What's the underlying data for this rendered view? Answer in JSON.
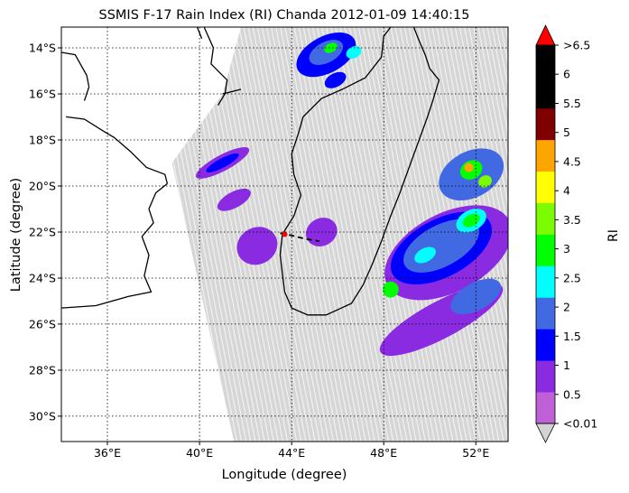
{
  "title": "SSMIS F-17 Rain Index (RI) Chanda 2012-01-09 14:40:15",
  "axes": {
    "xlabel": "Longitude (degree)",
    "ylabel": "Latitude (degree)",
    "xlim": [
      34,
      53.4
    ],
    "ylim": [
      -31.1,
      -13.1
    ],
    "x_ticks": [
      {
        "value": 36,
        "label": "36°E"
      },
      {
        "value": 40,
        "label": "40°E"
      },
      {
        "value": 44,
        "label": "44°E"
      },
      {
        "value": 48,
        "label": "48°E"
      },
      {
        "value": 52,
        "label": "52°E"
      }
    ],
    "y_ticks": [
      {
        "value": -14,
        "label": "14°S"
      },
      {
        "value": -16,
        "label": "16°S"
      },
      {
        "value": -18,
        "label": "18°S"
      },
      {
        "value": -20,
        "label": "20°S"
      },
      {
        "value": -22,
        "label": "22°S"
      },
      {
        "value": -24,
        "label": "24°S"
      },
      {
        "value": -26,
        "label": "26°S"
      },
      {
        "value": -28,
        "label": "28°S"
      },
      {
        "value": -30,
        "label": "30°S"
      }
    ],
    "grid": "dotted"
  },
  "colorbar": {
    "label": "RI",
    "colors": [
      "#c060d8",
      "#8a2be2",
      "#0000ff",
      "#4169e1",
      "#00ffff",
      "#00ff00",
      "#7cfc00",
      "#ffff00",
      "#ffa500",
      "#800000",
      "#000000",
      "#000000"
    ],
    "under_color": "#d3d3d3",
    "over_color": "#ff0000",
    "tick_labels": [
      "<0.01",
      "0.5",
      "1",
      "1.5",
      "2",
      "2.5",
      "3",
      "3.5",
      "4",
      "4.5",
      "5",
      "5.5",
      "6",
      ">6.5"
    ]
  },
  "colors": {
    "swath": "#d3d3d3",
    "coastline": "#000000",
    "track": "#000000",
    "storm_center": "#ff0000"
  },
  "chart_data": {
    "type": "heatmap",
    "title": "SSMIS F-17 Rain Index (RI) Chanda 2012-01-09 14:40:15",
    "xlabel": "Longitude (degree)",
    "ylabel": "Latitude (degree)",
    "xlim": [
      34,
      53.4
    ],
    "ylim": [
      -31.1,
      -13.1
    ],
    "swath_polygon": [
      [
        41.8,
        -13.1
      ],
      [
        53.4,
        -13.1
      ],
      [
        53.4,
        -31.1
      ],
      [
        41.5,
        -31.1
      ],
      [
        38.8,
        -19.0
      ],
      [
        41.0,
        -16.0
      ]
    ],
    "rain_regions": [
      {
        "lon": 45.5,
        "lat": -14.3,
        "rx": 1.4,
        "ry": 0.8,
        "ri": 1.0
      },
      {
        "lon": 45.5,
        "lat": -14.2,
        "rx": 0.8,
        "ry": 0.45,
        "ri": 1.5
      },
      {
        "lon": 45.7,
        "lat": -14.0,
        "rx": 0.3,
        "ry": 0.2,
        "ri": 2.5
      },
      {
        "lon": 46.7,
        "lat": -14.2,
        "rx": 0.35,
        "ry": 0.25,
        "ri": 2.0
      },
      {
        "lon": 45.9,
        "lat": -15.4,
        "rx": 0.5,
        "ry": 0.3,
        "ri": 1.0
      },
      {
        "lon": 41.0,
        "lat": -19.0,
        "rx": 1.3,
        "ry": 0.35,
        "ri": 0.5
      },
      {
        "lon": 41.0,
        "lat": -19.0,
        "rx": 0.8,
        "ry": 0.2,
        "ri": 1.0
      },
      {
        "lon": 41.5,
        "lat": -20.6,
        "rx": 0.8,
        "ry": 0.35,
        "ri": 0.5
      },
      {
        "lon": 42.5,
        "lat": -22.6,
        "rx": 0.9,
        "ry": 0.8,
        "ri": 0.5
      },
      {
        "lon": 45.3,
        "lat": -22.0,
        "rx": 0.7,
        "ry": 0.6,
        "ri": 0.5
      },
      {
        "lon": 51.8,
        "lat": -19.5,
        "rx": 1.5,
        "ry": 1.0,
        "ri": 1.5
      },
      {
        "lon": 51.8,
        "lat": -19.3,
        "rx": 0.5,
        "ry": 0.4,
        "ri": 2.5
      },
      {
        "lon": 51.7,
        "lat": -19.2,
        "rx": 0.2,
        "ry": 0.2,
        "ri": 4.0
      },
      {
        "lon": 52.4,
        "lat": -19.8,
        "rx": 0.3,
        "ry": 0.25,
        "ri": 3.0
      },
      {
        "lon": 50.8,
        "lat": -22.9,
        "rx": 3.0,
        "ry": 1.7,
        "ri": 0.5
      },
      {
        "lon": 50.5,
        "lat": -22.7,
        "rx": 2.4,
        "ry": 1.25,
        "ri": 1.0
      },
      {
        "lon": 50.5,
        "lat": -22.6,
        "rx": 1.8,
        "ry": 0.9,
        "ri": 1.5
      },
      {
        "lon": 51.8,
        "lat": -21.5,
        "rx": 0.7,
        "ry": 0.45,
        "ri": 2.0
      },
      {
        "lon": 51.8,
        "lat": -21.5,
        "rx": 0.4,
        "ry": 0.25,
        "ri": 2.5
      },
      {
        "lon": 49.8,
        "lat": -23.0,
        "rx": 0.5,
        "ry": 0.3,
        "ri": 2.0
      },
      {
        "lon": 48.3,
        "lat": -24.5,
        "rx": 0.35,
        "ry": 0.35,
        "ri": 2.5
      },
      {
        "lon": 50.5,
        "lat": -25.8,
        "rx": 3.0,
        "ry": 0.8,
        "ri": 0.5
      },
      {
        "lon": 52.0,
        "lat": -24.8,
        "rx": 1.2,
        "ry": 0.6,
        "ri": 1.5
      }
    ],
    "storm_track": [
      [
        43.5,
        -22.05
      ],
      [
        44.0,
        -22.15
      ],
      [
        44.6,
        -22.3
      ],
      [
        45.2,
        -22.4
      ]
    ],
    "storm_center": {
      "lon": 43.7,
      "lat": -22.1
    }
  }
}
